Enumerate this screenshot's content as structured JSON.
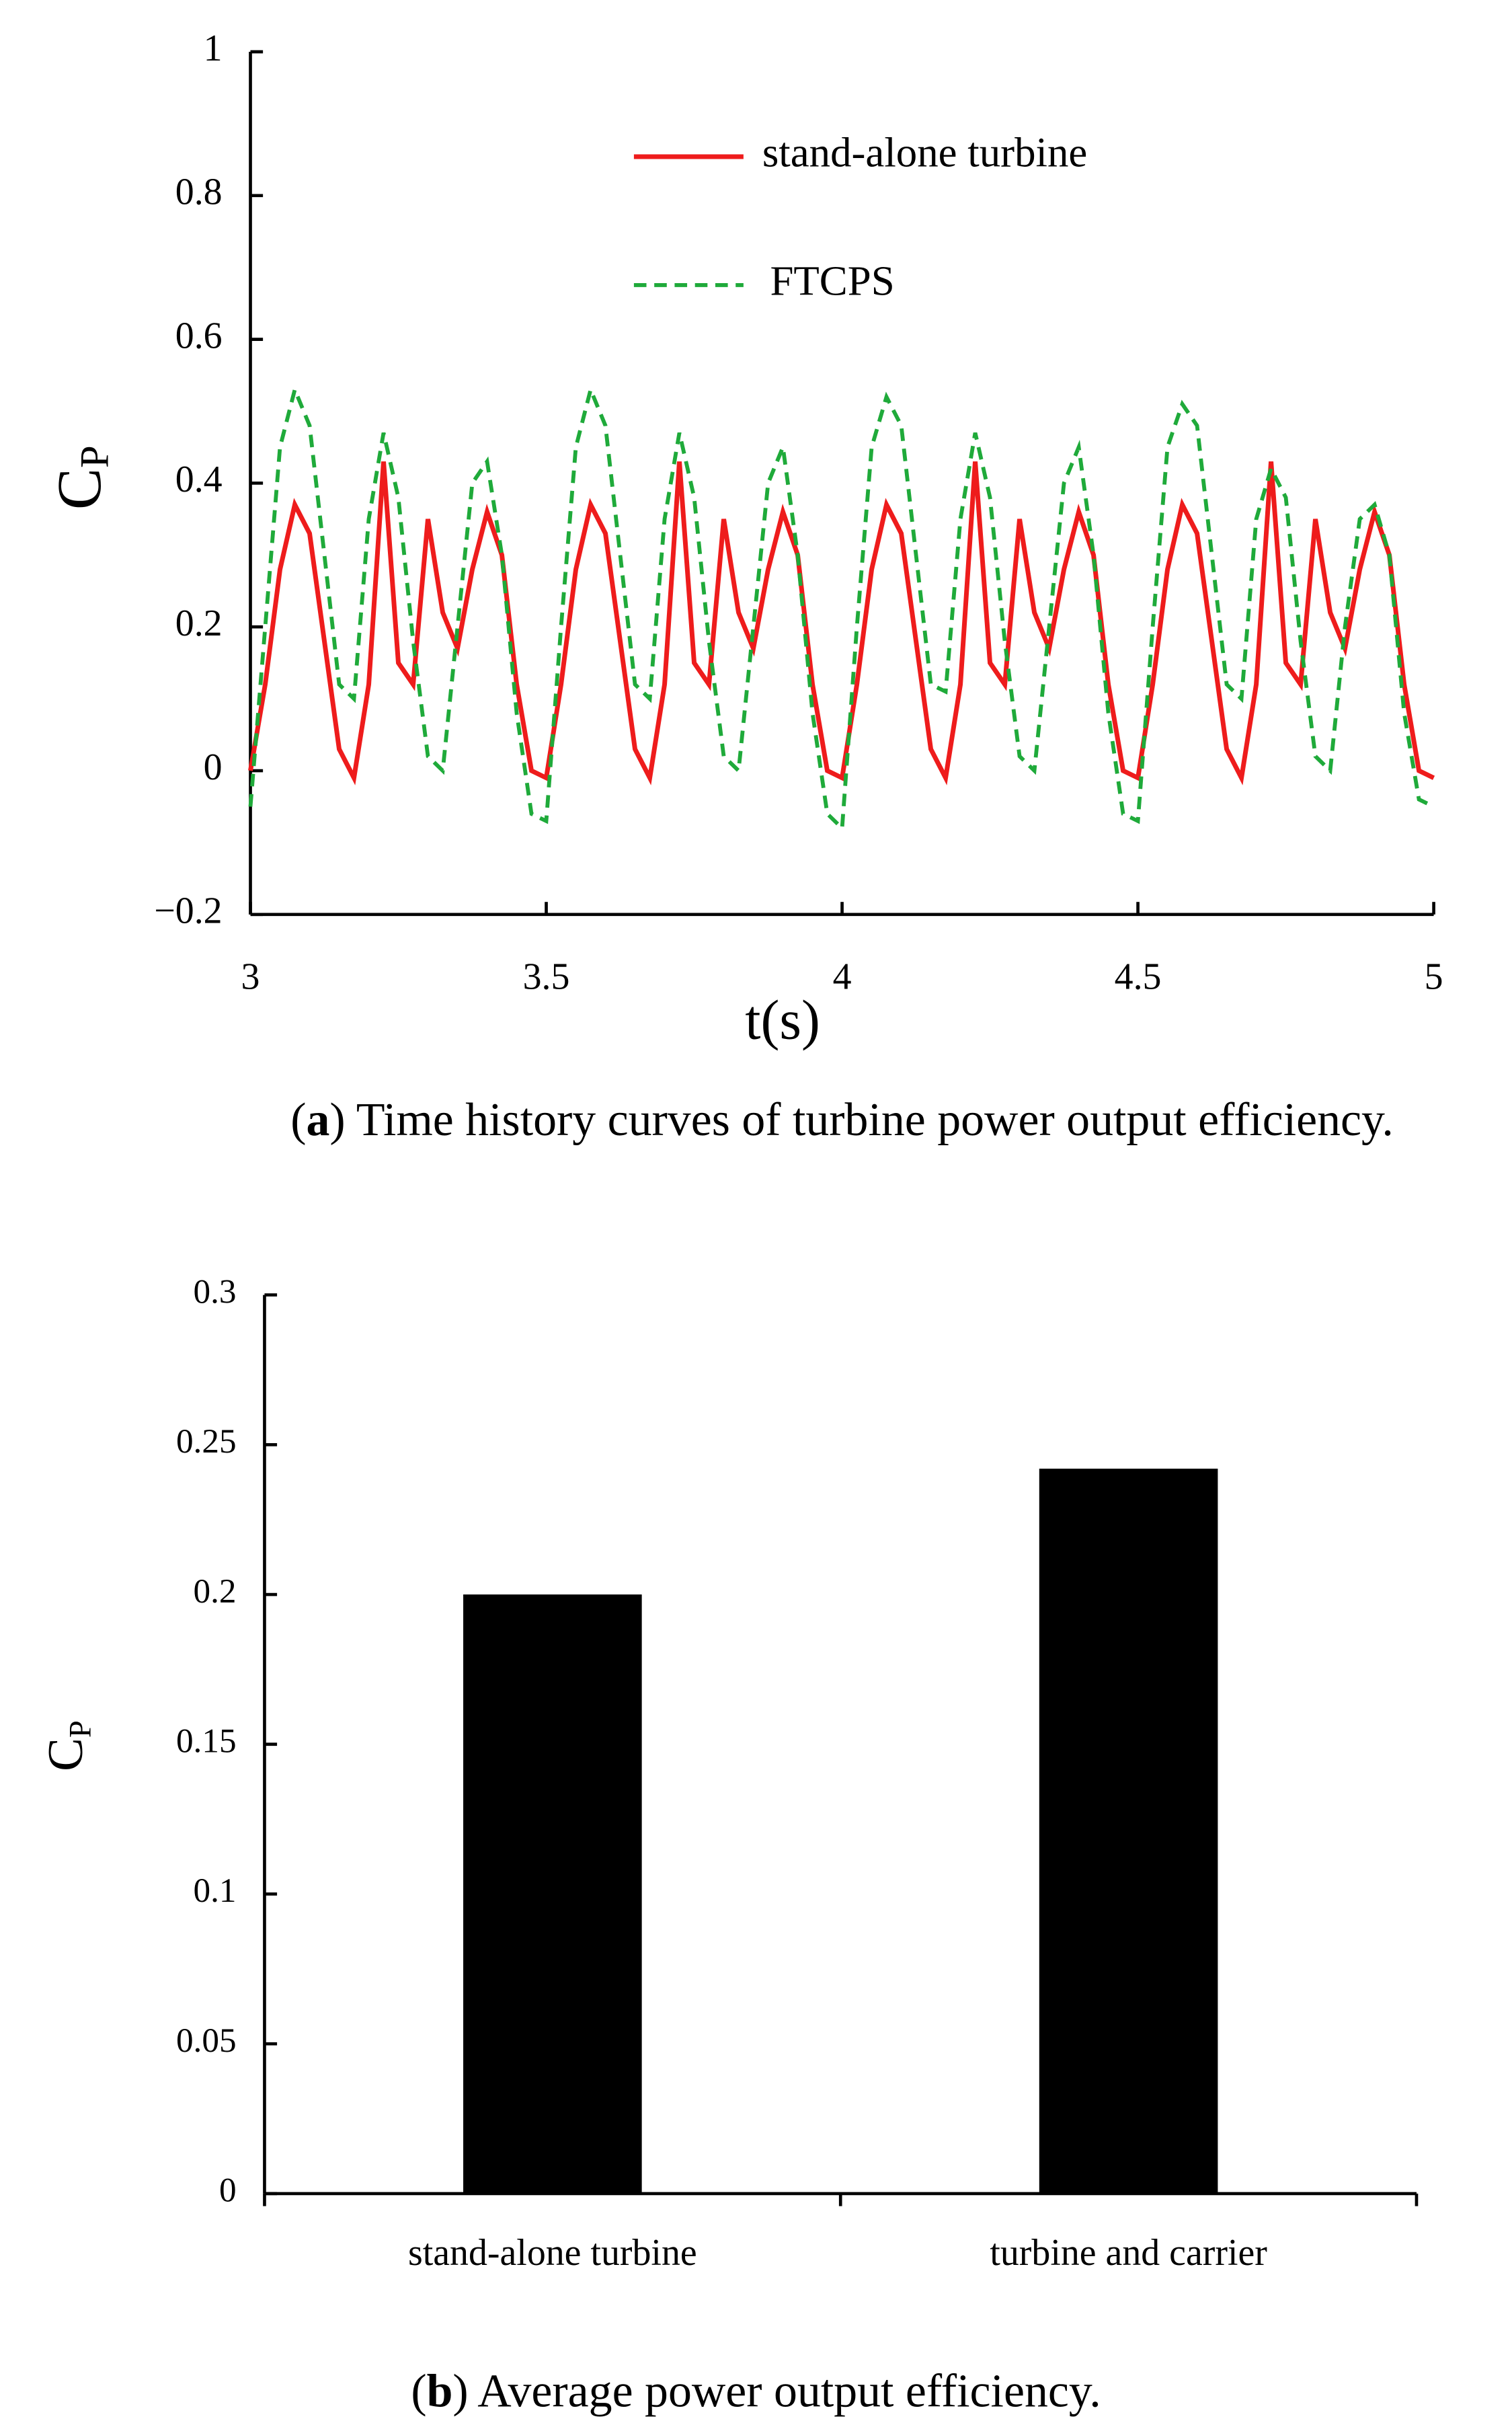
{
  "chart_data": [
    {
      "type": "line",
      "x_label": "t(s)",
      "y_label": {
        "symbol": "C",
        "subscript": "P"
      },
      "caption": [
        "(",
        "a",
        ") Time history curves of turbine power output efficiency."
      ],
      "xlim": [
        3,
        5
      ],
      "xticks": [
        3,
        3.5,
        4,
        4.5,
        5
      ],
      "ylim": [
        -0.2,
        1
      ],
      "yticks": [
        {
          "value": -0.2,
          "label": "−0.2"
        },
        0,
        0.2,
        0.4,
        0.6,
        0.8,
        1
      ],
      "x": [
        3.0,
        3.025,
        3.05,
        3.075,
        3.1,
        3.125,
        3.15,
        3.175,
        3.2,
        3.225,
        3.25,
        3.275,
        3.3,
        3.325,
        3.35,
        3.375,
        3.4,
        3.425,
        3.45,
        3.475,
        3.5,
        3.525,
        3.55,
        3.575,
        3.6,
        3.625,
        3.65,
        3.675,
        3.7,
        3.725,
        3.75,
        3.775,
        3.8,
        3.825,
        3.85,
        3.875,
        3.9,
        3.925,
        3.95,
        3.975,
        4.0,
        4.025,
        4.05,
        4.075,
        4.1,
        4.125,
        4.15,
        4.175,
        4.2,
        4.225,
        4.25,
        4.275,
        4.3,
        4.325,
        4.35,
        4.375,
        4.4,
        4.425,
        4.45,
        4.475,
        4.5,
        4.525,
        4.55,
        4.575,
        4.6,
        4.625,
        4.65,
        4.675,
        4.7,
        4.725,
        4.75,
        4.775,
        4.8,
        4.825,
        4.85,
        4.875,
        4.9,
        4.925,
        4.95,
        4.975,
        5.0
      ],
      "legend": "top-center",
      "series": [
        {
          "name": "stand-alone turbine",
          "color": "#ee1c1c",
          "dash": false,
          "values": [
            0.0,
            0.12,
            0.28,
            0.37,
            0.33,
            0.18,
            0.03,
            -0.01,
            0.12,
            0.43,
            0.15,
            0.12,
            0.35,
            0.22,
            0.17,
            0.28,
            0.36,
            0.3,
            0.12,
            0.0,
            -0.01,
            0.12,
            0.28,
            0.37,
            0.33,
            0.18,
            0.03,
            -0.01,
            0.12,
            0.43,
            0.15,
            0.12,
            0.35,
            0.22,
            0.17,
            0.28,
            0.36,
            0.3,
            0.12,
            0.0,
            -0.01,
            0.12,
            0.28,
            0.37,
            0.33,
            0.18,
            0.03,
            -0.01,
            0.12,
            0.43,
            0.15,
            0.12,
            0.35,
            0.22,
            0.17,
            0.28,
            0.36,
            0.3,
            0.12,
            0.0,
            -0.01,
            0.12,
            0.28,
            0.37,
            0.33,
            0.18,
            0.03,
            -0.01,
            0.12,
            0.43,
            0.15,
            0.12,
            0.35,
            0.22,
            0.17,
            0.28,
            0.36,
            0.3,
            0.12,
            0.0,
            -0.01
          ]
        },
        {
          "name": "FTCPS",
          "color": "#1faa3a",
          "dash": true,
          "values": [
            -0.05,
            0.2,
            0.45,
            0.53,
            0.48,
            0.3,
            0.12,
            0.1,
            0.35,
            0.47,
            0.38,
            0.18,
            0.02,
            0.0,
            0.2,
            0.4,
            0.43,
            0.3,
            0.08,
            -0.06,
            -0.07,
            0.2,
            0.45,
            0.53,
            0.48,
            0.3,
            0.12,
            0.1,
            0.35,
            0.47,
            0.38,
            0.18,
            0.02,
            0.0,
            0.2,
            0.4,
            0.45,
            0.3,
            0.08,
            -0.06,
            -0.08,
            0.2,
            0.45,
            0.52,
            0.48,
            0.3,
            0.12,
            0.11,
            0.35,
            0.47,
            0.38,
            0.18,
            0.02,
            0.0,
            0.2,
            0.4,
            0.45,
            0.3,
            0.08,
            -0.06,
            -0.07,
            0.2,
            0.45,
            0.51,
            0.48,
            0.3,
            0.12,
            0.1,
            0.35,
            0.42,
            0.38,
            0.18,
            0.02,
            0.0,
            0.2,
            0.35,
            0.37,
            0.3,
            0.08,
            -0.04,
            -0.05
          ]
        }
      ]
    },
    {
      "type": "bar",
      "y_label": {
        "symbol": "C",
        "subscript": "P"
      },
      "caption": [
        "(",
        "b",
        ") Average power output efficiency."
      ],
      "categories": [
        "stand-alone turbine",
        "turbine and carrier"
      ],
      "values": [
        0.2,
        0.242
      ],
      "color": "#000000",
      "ylim": [
        0,
        0.3
      ],
      "yticks": [
        0,
        0.05,
        0.1,
        0.15,
        0.2,
        0.25,
        0.3
      ]
    }
  ]
}
